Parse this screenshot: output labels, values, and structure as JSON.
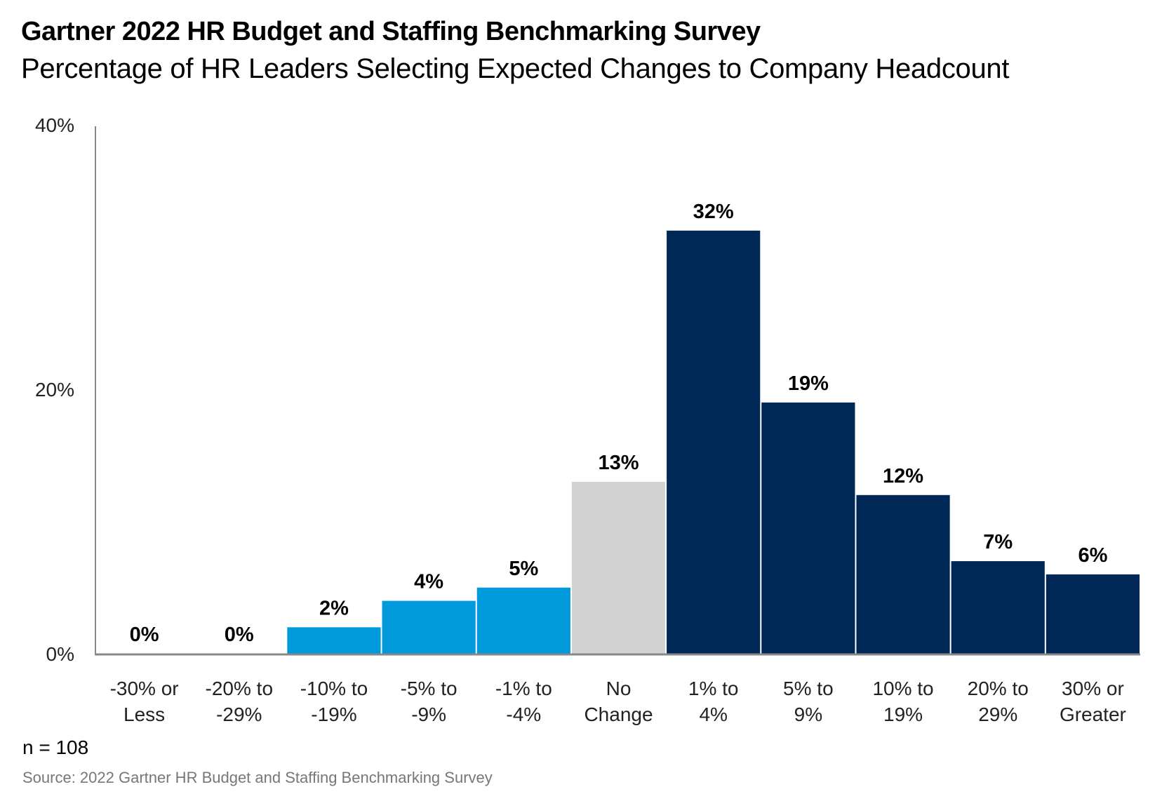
{
  "chart_data": {
    "type": "bar",
    "title": "Gartner 2022 HR Budget and Staffing Benchmarking Survey",
    "subtitle": "Percentage of HR Leaders Selecting Expected Changes to Company Headcount",
    "categories": [
      [
        "-30% or",
        "Less"
      ],
      [
        "-20% to",
        "-29%"
      ],
      [
        "-10% to",
        "-19%"
      ],
      [
        "-5% to",
        "-9%"
      ],
      [
        "-1% to",
        "-4%"
      ],
      [
        "No",
        "Change"
      ],
      [
        "1% to",
        "4%"
      ],
      [
        "5% to",
        "9%"
      ],
      [
        "10% to",
        "19%"
      ],
      [
        "20% to",
        "29%"
      ],
      [
        "30% or",
        "Greater"
      ]
    ],
    "values": [
      0,
      0,
      2,
      4,
      5,
      13,
      32,
      19,
      12,
      7,
      6
    ],
    "data_labels": [
      "0%",
      "0%",
      "2%",
      "4%",
      "5%",
      "13%",
      "32%",
      "19%",
      "12%",
      "7%",
      "6%"
    ],
    "bar_colors": [
      "#0099dc",
      "#0099dc",
      "#0099dc",
      "#0099dc",
      "#0099dc",
      "#d3d3d3",
      "#002856",
      "#002856",
      "#002856",
      "#002856",
      "#002856"
    ],
    "yticks": [
      "0%",
      "20%",
      "40%"
    ],
    "ytick_values": [
      0,
      20,
      40
    ],
    "ylim": [
      0,
      40
    ],
    "grid": false,
    "xlabel": "",
    "ylabel": ""
  },
  "note": "n = 108",
  "source": "Source: 2022 Gartner HR Budget and Staffing Benchmarking Survey"
}
